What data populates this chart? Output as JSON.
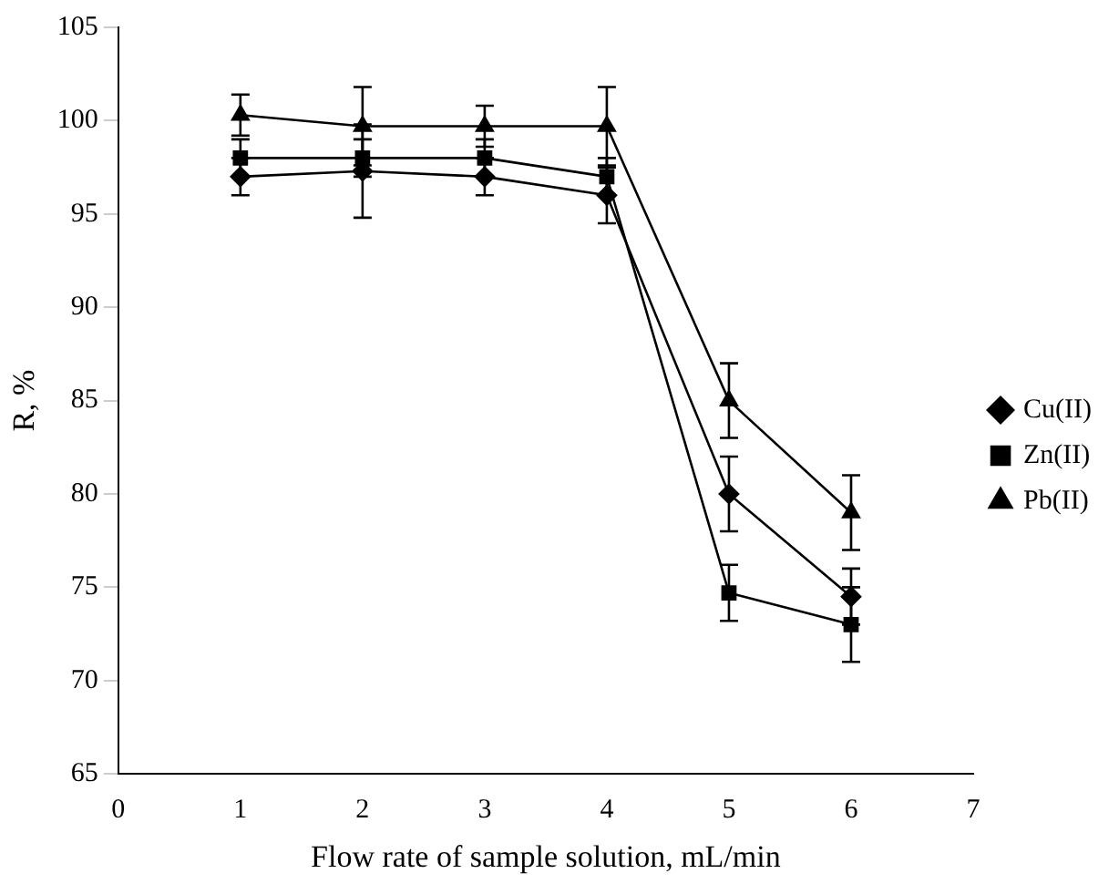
{
  "chart_data": {
    "type": "line",
    "xlabel": "Flow rate of sample solution, mL/min",
    "ylabel": "R, %",
    "x": [
      1,
      2,
      3,
      4,
      5,
      6
    ],
    "xlim": [
      0,
      7
    ],
    "xticks": [
      0,
      1,
      2,
      3,
      4,
      5,
      6,
      7
    ],
    "ylim": [
      65,
      105
    ],
    "yticks": [
      65,
      70,
      75,
      80,
      85,
      90,
      95,
      100,
      105
    ],
    "grid": false,
    "legend": "right",
    "series": [
      {
        "name": "Cu(II)",
        "color": "#000000",
        "marker": "diamond",
        "values": [
          97,
          97.3,
          97,
          96,
          80,
          74.5
        ],
        "errors": [
          1,
          2.5,
          1,
          1.5,
          2,
          1.5
        ]
      },
      {
        "name": "Zn(II)",
        "color": "#000000",
        "marker": "square",
        "values": [
          98,
          98,
          98,
          97,
          74.7,
          73
        ],
        "errors": [
          1,
          1,
          1,
          1,
          1.5,
          2
        ]
      },
      {
        "name": "Pb(II)",
        "color": "#000000",
        "marker": "triangle",
        "values": [
          100.3,
          99.7,
          99.7,
          99.7,
          85,
          79
        ],
        "errors": [
          1.1,
          2.1,
          1.1,
          2.1,
          2,
          2
        ]
      }
    ]
  }
}
